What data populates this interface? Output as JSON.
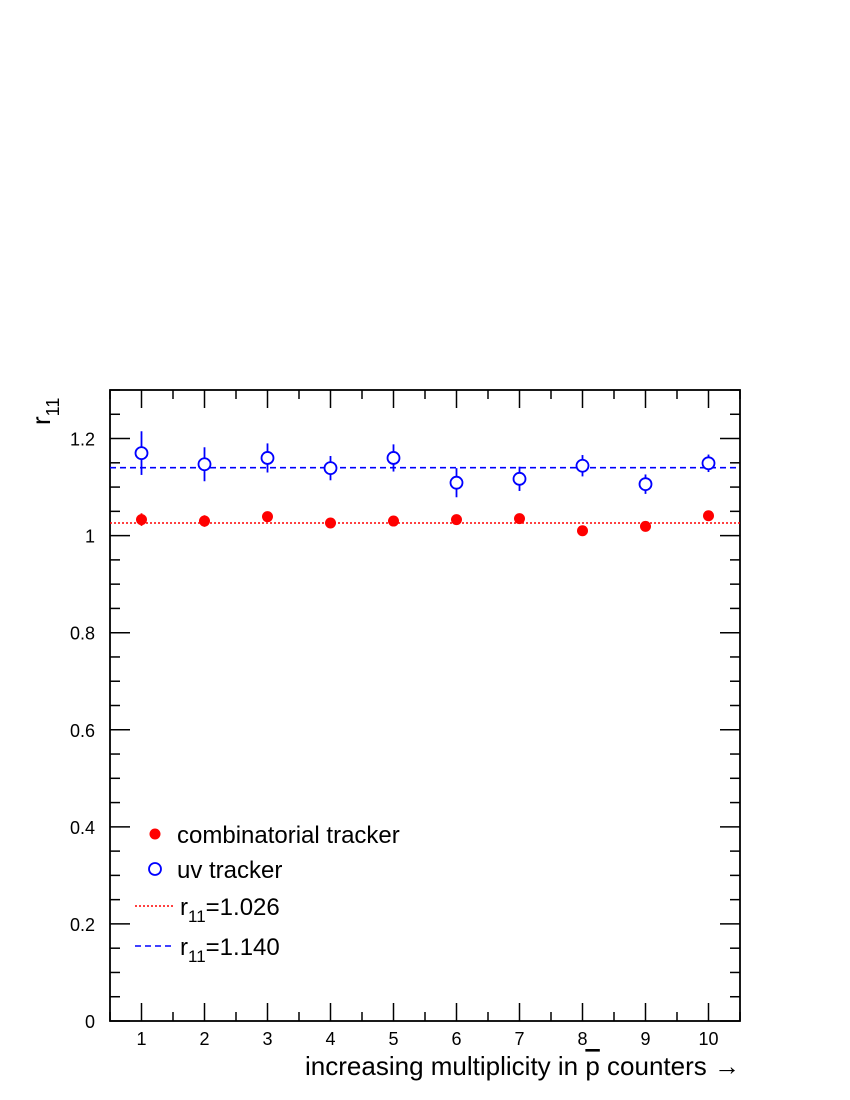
{
  "chart_data": {
    "type": "scatter",
    "title": "",
    "ylabel": {
      "main": "r",
      "sub": "11"
    },
    "xlabel": {
      "prefix": "increasing multiplicity in ",
      "pbar": "p",
      "suffix": " counters →"
    },
    "xlim": [
      0.5,
      10.5
    ],
    "ylim": [
      0,
      1.3
    ],
    "x_ticks": [
      "1",
      "2",
      "3",
      "4",
      "5",
      "6",
      "7",
      "8",
      "9",
      "10"
    ],
    "y_ticks": [
      "0",
      "0.2",
      "0.4",
      "0.6",
      "0.8",
      "1",
      "1.2"
    ],
    "y_tick_values": [
      0,
      0.2,
      0.4,
      0.6,
      0.8,
      1.0,
      1.2
    ],
    "grid": false,
    "legend_position": "bottom-left",
    "series": [
      {
        "name": "combinatorial tracker",
        "marker": "filled-circle",
        "color": "#ff0000",
        "x": [
          1,
          2,
          3,
          4,
          5,
          6,
          7,
          8,
          9,
          10
        ],
        "y": [
          1.033,
          1.03,
          1.039,
          1.026,
          1.03,
          1.033,
          1.035,
          1.01,
          1.019,
          1.041
        ],
        "err": [
          0.013,
          0.012,
          0.01,
          0.008,
          0.008,
          0.009,
          0.008,
          0.008,
          0.009,
          0.008
        ]
      },
      {
        "name": "uv tracker",
        "marker": "open-circle",
        "color": "#0000ff",
        "x": [
          1,
          2,
          3,
          4,
          5,
          6,
          7,
          8,
          9,
          10
        ],
        "y": [
          1.17,
          1.147,
          1.16,
          1.139,
          1.16,
          1.109,
          1.117,
          1.144,
          1.106,
          1.149
        ],
        "err": [
          0.045,
          0.035,
          0.03,
          0.025,
          0.028,
          0.03,
          0.025,
          0.022,
          0.02,
          0.018
        ]
      }
    ],
    "reference_lines": [
      {
        "label_main": "r",
        "label_sub": "11",
        "label_value": "=1.026",
        "y": 1.026,
        "style": "dotted",
        "color": "#ff0000"
      },
      {
        "label_main": "r",
        "label_sub": "11",
        "label_value": "=1.140",
        "y": 1.14,
        "style": "dashed",
        "color": "#0000ff"
      }
    ]
  }
}
